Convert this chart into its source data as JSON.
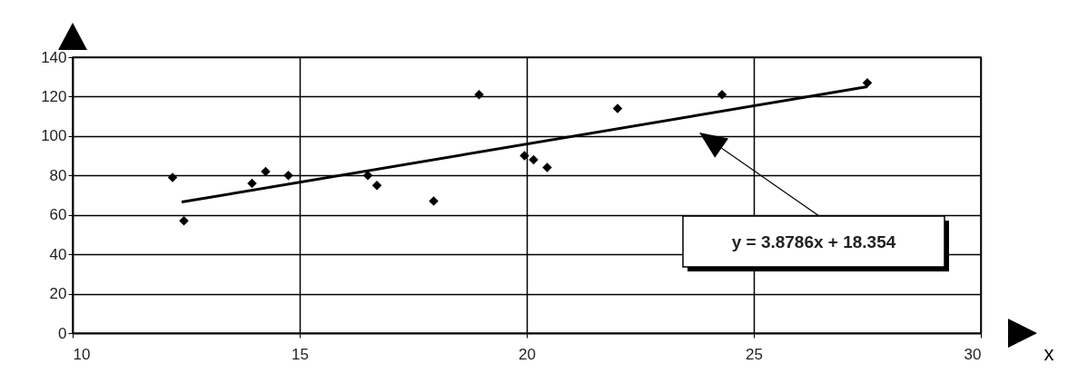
{
  "chart_data": {
    "type": "scatter",
    "xlabel": "x",
    "x": [
      12.2,
      12.45,
      13.95,
      14.25,
      14.75,
      16.5,
      16.7,
      17.95,
      18.95,
      19.95,
      20.15,
      20.45,
      22.0,
      24.3,
      27.5
    ],
    "series": [
      {
        "color": "#000000",
        "values": [
          79,
          57,
          76,
          82,
          80,
          80,
          75,
          67,
          121,
          90,
          88,
          84,
          114,
          121,
          127
        ]
      },
      {
        "type": "line",
        "color": "#000000",
        "marker": "none",
        "x": [
          12.4,
          27.5
        ],
        "values": [
          66.5,
          125
        ]
      }
    ],
    "marker": "diamond",
    "xlim": [
      10,
      30
    ],
    "xticks": [
      10,
      15,
      20,
      25,
      30
    ],
    "ylim": [
      0,
      140
    ],
    "yticks": [
      0,
      20,
      40,
      60,
      80,
      100,
      120,
      140
    ],
    "grid": true,
    "annotations": [
      "y = 3.8786x + 18.354"
    ]
  }
}
